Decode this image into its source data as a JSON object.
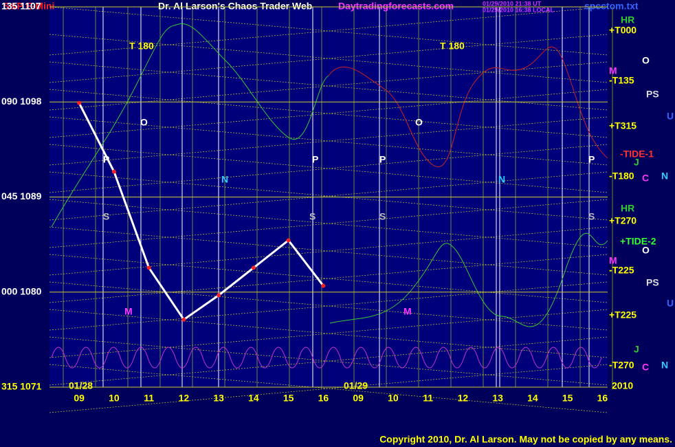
{
  "chart_data": {
    "type": "line",
    "title": "Dr. Al Larson's Chaos Trader Web",
    "instrument": "S&P E-Mini",
    "site": "Daytradingforecasts.com",
    "file": "spcctom.txt",
    "timestamp_1": "01/29/2010 21:38 UT",
    "timestamp_2": "01/29/2010 16:38 LOCAL",
    "copyright": "Copyright 2010, Dr. Al Larson. May not be copied by any means.",
    "dates": [
      "01/28",
      "01/29",
      "2010"
    ],
    "categories": [
      "09",
      "10",
      "11",
      "12",
      "13",
      "14",
      "15",
      "16",
      "09",
      "10",
      "11",
      "12",
      "13",
      "14",
      "15",
      "16"
    ],
    "series": [
      {
        "name": "S&P E-Mini",
        "color": "#ffffff",
        "values": [
          1097.9,
          1091.4,
          1082.3,
          1077.4,
          1079.7,
          1082.3,
          1084.9,
          1080.6,
          null,
          null,
          null,
          null,
          null,
          null,
          null,
          null
        ]
      }
    ],
    "ylim": [
      1071,
      1107
    ],
    "yticks": [
      {
        "value": 1071,
        "label": "315 1071"
      },
      {
        "value": 1080,
        "label": "000 1080"
      },
      {
        "value": 1089,
        "label": "045 1089"
      },
      {
        "value": 1098,
        "label": "090 1098"
      },
      {
        "value": 1107,
        "label": "135 1107"
      }
    ],
    "grid": true,
    "annotations": [
      {
        "text": "+T000",
        "color": "#ffff00"
      },
      {
        "text": "M",
        "color": "#ff33ff"
      },
      {
        "text": "-T135",
        "color": "#ffff00"
      },
      {
        "text": "O",
        "color": "#ffffff"
      },
      {
        "text": "PS",
        "color": "#dddddd"
      },
      {
        "text": "U",
        "color": "#3366ff"
      },
      {
        "text": "+T315",
        "color": "#ffff00"
      },
      {
        "text": "-TIDE-1",
        "color": "#ff3333"
      },
      {
        "text": "J",
        "color": "#33cc33"
      },
      {
        "text": "-T180",
        "color": "#ffff00"
      },
      {
        "text": "C",
        "color": "#ff33ff"
      },
      {
        "text": "N",
        "color": "#33ccff"
      },
      {
        "text": "+T270",
        "color": "#ffff00"
      },
      {
        "text": "+TIDE-2",
        "color": "#33ff33"
      },
      {
        "text": "O",
        "color": "#ffffff"
      },
      {
        "text": "M",
        "color": "#ff33ff"
      },
      {
        "text": "-T225",
        "color": "#ffff00"
      },
      {
        "text": "PS",
        "color": "#dddddd"
      },
      {
        "text": "U",
        "color": "#3366ff"
      },
      {
        "text": "+T225",
        "color": "#ffff00"
      },
      {
        "text": "J",
        "color": "#33cc33"
      },
      {
        "text": "-T270",
        "color": "#ffff00"
      },
      {
        "text": "C",
        "color": "#ff33ff"
      },
      {
        "text": "N",
        "color": "#33ccff"
      },
      {
        "text": "T 180",
        "color": "#ffff00"
      },
      {
        "text": "T 180",
        "color": "#ffff00"
      },
      {
        "text": "O",
        "color": "#ffffff"
      },
      {
        "text": "O",
        "color": "#ffffff"
      },
      {
        "text": "P",
        "color": "#ffffff"
      },
      {
        "text": "P",
        "color": "#ffffff"
      },
      {
        "text": "P",
        "color": "#ffffff"
      },
      {
        "text": "P",
        "color": "#ffffff"
      },
      {
        "text": "N",
        "color": "#33ccff"
      },
      {
        "text": "N",
        "color": "#33ccff"
      },
      {
        "text": "S",
        "color": "#bbbbbb"
      },
      {
        "text": "S",
        "color": "#bbbbbb"
      },
      {
        "text": "S",
        "color": "#bbbbbb"
      },
      {
        "text": "S",
        "color": "#bbbbbb"
      },
      {
        "text": "M",
        "color": "#ff33ff"
      },
      {
        "text": "M",
        "color": "#ff33ff"
      },
      {
        "text": "HR",
        "color": "#33cc33"
      },
      {
        "text": "HR",
        "color": "#33cc33"
      }
    ]
  }
}
